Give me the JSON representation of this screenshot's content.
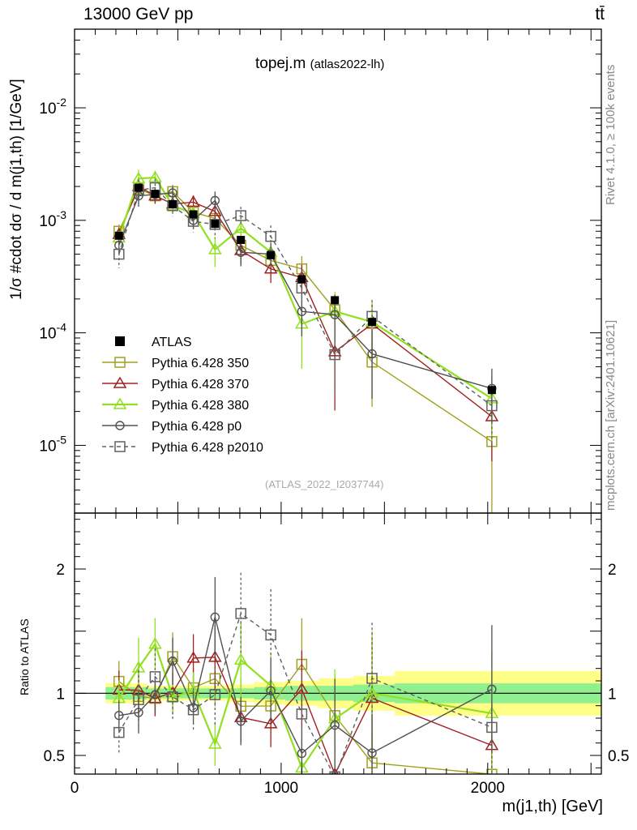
{
  "header": {
    "energy_label": "13000 GeV pp",
    "process_label": "tt̄"
  },
  "side_labels": {
    "rivet": "Rivet 4.1.0, ≥ 100k events",
    "mcplots": "mcplots.cern.ch [arXiv:2401.10621]"
  },
  "chart_data": {
    "type": "line",
    "title": "topej.m",
    "subtitle": "(atlas2022-lh)",
    "reference_id": "(ATLAS_2022_I2037744)",
    "xlabel": "m(j1,th) [GeV]",
    "ylabel": "1/σ #cdot dσ / d m(j1,th) [1/GeV]",
    "ratio_ylabel": "Ratio to ATLAS",
    "xlim": [
      0,
      2550
    ],
    "ylim": [
      2.5e-06,
      0.05
    ],
    "ylog": true,
    "ratio_ylim": [
      0.35,
      2.45
    ],
    "x_ticks": [
      0,
      1000,
      2000
    ],
    "x_tick_labels": [
      "0",
      "1000",
      "2000"
    ],
    "y_ticks": [
      1e-05,
      0.0001,
      0.001,
      0.01
    ],
    "y_tick_labels": [
      "10^-5",
      "10^-4",
      "10^-3",
      "10^-2"
    ],
    "ratio_ticks": [
      0.5,
      1,
      2
    ],
    "ratio_tick_labels": [
      "0.5",
      "1",
      "2"
    ],
    "legend_position": "middle-left",
    "data": {
      "name": "ATLAS",
      "color": "#000000",
      "x": [
        215,
        310,
        390,
        475,
        575,
        680,
        805,
        950,
        1100,
        1260,
        1440,
        2020
      ],
      "y": [
        0.00073,
        0.00195,
        0.00172,
        0.00139,
        0.00113,
        0.00093,
        0.00067,
        0.00049,
        0.0003,
        0.000195,
        0.000125,
        3.1e-05
      ],
      "band_x": [
        150,
        270,
        350,
        430,
        520,
        630,
        740,
        870,
        1020,
        1180,
        1350,
        1550,
        2550
      ],
      "band_inner": [
        0.05,
        0.05,
        0.04,
        0.04,
        0.04,
        0.04,
        0.04,
        0.05,
        0.06,
        0.06,
        0.07,
        0.08
      ],
      "band_outer": [
        0.08,
        0.08,
        0.06,
        0.06,
        0.06,
        0.06,
        0.07,
        0.09,
        0.1,
        0.12,
        0.14,
        0.18
      ]
    },
    "series": [
      {
        "name": "Pythia 6.428 350",
        "color": "#a0a020",
        "marker": "square",
        "dash": false,
        "y": [
          0.0008,
          0.0019,
          0.00165,
          0.0018,
          0.00118,
          0.00104,
          0.0006,
          0.00044,
          0.00037,
          0.00016,
          5.5e-05,
          1.08e-05
        ],
        "err": [
          0.15,
          0.2,
          0.15,
          0.15,
          0.15,
          0.2,
          0.25,
          0.25,
          0.3,
          0.4,
          0.6,
          0.9
        ]
      },
      {
        "name": "Pythia 6.428 370",
        "color": "#a02020",
        "marker": "triangle",
        "dash": false,
        "y": [
          0.00075,
          0.002,
          0.00165,
          0.0014,
          0.00145,
          0.0012,
          0.00054,
          0.00037,
          0.00031,
          6.8e-05,
          0.00012,
          1.8e-05
        ],
        "err": [
          0.15,
          0.2,
          0.15,
          0.15,
          0.15,
          0.2,
          0.25,
          0.25,
          0.3,
          0.7,
          0.5,
          0.6
        ]
      },
      {
        "name": "Pythia 6.428 380",
        "color": "#90e020",
        "marker": "triangle",
        "dash": false,
        "y": [
          0.0007,
          0.00235,
          0.0024,
          0.00135,
          0.00115,
          0.00055,
          0.00085,
          0.00052,
          0.00012,
          0.000155,
          0.000125,
          2.6e-05
        ],
        "err": [
          0.15,
          0.2,
          0.15,
          0.15,
          0.15,
          0.3,
          0.25,
          0.25,
          0.6,
          0.5,
          0.5,
          0.6
        ]
      },
      {
        "name": "Pythia 6.428 p0",
        "color": "#505050",
        "marker": "circle",
        "dash": false,
        "y": [
          0.0006,
          0.00165,
          0.0017,
          0.00175,
          0.001,
          0.0015,
          0.00052,
          0.0005,
          0.000155,
          0.000145,
          6.5e-05,
          3.2e-05
        ],
        "err": [
          0.15,
          0.2,
          0.15,
          0.15,
          0.15,
          0.2,
          0.25,
          0.25,
          0.4,
          0.5,
          0.6,
          0.5
        ]
      },
      {
        "name": "Pythia 6.428 p2010",
        "color": "#606060",
        "marker": "square",
        "dash": true,
        "y": [
          0.0005,
          0.00185,
          0.00195,
          0.00135,
          0.00098,
          0.00092,
          0.0011,
          0.00072,
          0.00025,
          6.4e-05,
          0.00014,
          2.25e-05
        ],
        "err": [
          0.25,
          0.25,
          0.2,
          0.2,
          0.2,
          0.25,
          0.2,
          0.25,
          0.4,
          0.6,
          0.4,
          0.6
        ]
      }
    ]
  }
}
